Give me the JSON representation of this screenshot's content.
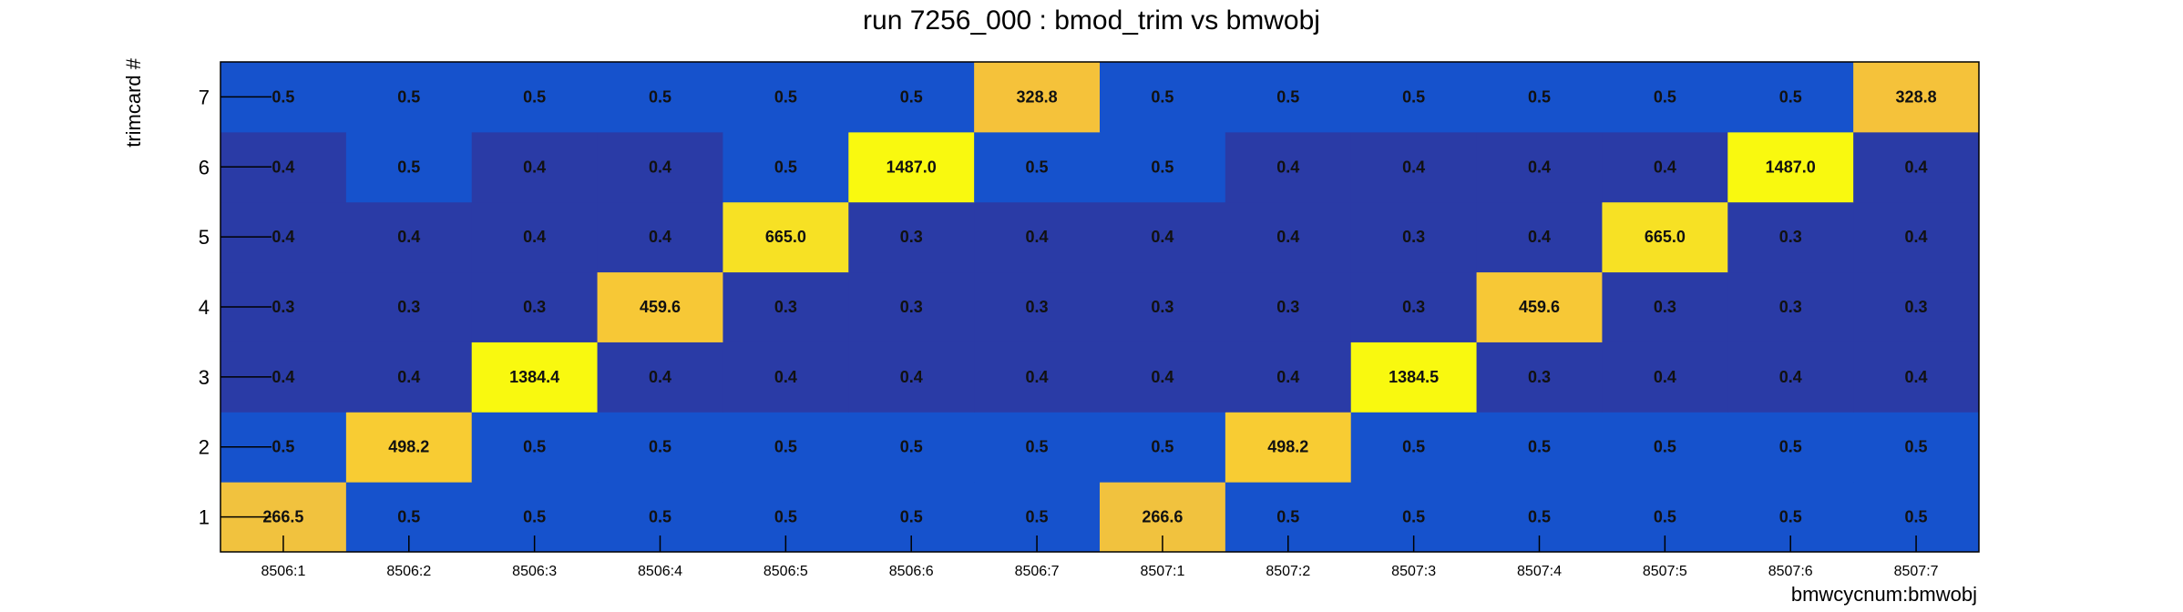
{
  "chart_data": {
    "type": "heatmap",
    "title": "run 7256_000 : bmod_trim vs bmwobj",
    "xlabel": "bmwcycnum:bmwobj",
    "ylabel": "trimcard #",
    "x_categories": [
      "8506:1",
      "8506:2",
      "8506:3",
      "8506:4",
      "8506:5",
      "8506:6",
      "8506:7",
      "8507:1",
      "8507:2",
      "8507:3",
      "8507:4",
      "8507:5",
      "8507:6",
      "8507:7"
    ],
    "y_categories": [
      "1",
      "2",
      "3",
      "4",
      "5",
      "6",
      "7"
    ],
    "values": [
      [
        "266.5",
        "0.5",
        "0.5",
        "0.5",
        "0.5",
        "0.5",
        "0.5",
        "266.6",
        "0.5",
        "0.5",
        "0.5",
        "0.5",
        "0.5",
        "0.5"
      ],
      [
        "0.5",
        "498.2",
        "0.5",
        "0.5",
        "0.5",
        "0.5",
        "0.5",
        "0.5",
        "498.2",
        "0.5",
        "0.5",
        "0.5",
        "0.5",
        "0.5"
      ],
      [
        "0.4",
        "0.4",
        "1384.4",
        "0.4",
        "0.4",
        "0.4",
        "0.4",
        "0.4",
        "0.4",
        "1384.5",
        "0.3",
        "0.4",
        "0.4",
        "0.4"
      ],
      [
        "0.3",
        "0.3",
        "0.3",
        "459.6",
        "0.3",
        "0.3",
        "0.3",
        "0.3",
        "0.3",
        "0.3",
        "459.6",
        "0.3",
        "0.3",
        "0.3"
      ],
      [
        "0.4",
        "0.4",
        "0.4",
        "0.4",
        "665.0",
        "0.3",
        "0.4",
        "0.4",
        "0.4",
        "0.3",
        "0.4",
        "665.0",
        "0.3",
        "0.4"
      ],
      [
        "0.4",
        "0.5",
        "0.4",
        "0.4",
        "0.5",
        "1487.0",
        "0.5",
        "0.5",
        "0.4",
        "0.4",
        "0.4",
        "0.4",
        "1487.0",
        "0.4"
      ],
      [
        "0.5",
        "0.5",
        "0.5",
        "0.5",
        "0.5",
        "0.5",
        "328.8",
        "0.5",
        "0.5",
        "0.5",
        "0.5",
        "0.5",
        "0.5",
        "328.8"
      ]
    ],
    "colors": {
      "0.3": "#2a3ba6",
      "0.4": "#2a3ba6",
      "0.5": "#1652cc",
      "266": "#f1c23e",
      "328": "#f5c23a",
      "459": "#f7c836",
      "498": "#f8cc33",
      "665": "#f7e124",
      "1384": "#f9f90f",
      "1487": "#f9f90f"
    },
    "grid": false,
    "legend": "none"
  }
}
